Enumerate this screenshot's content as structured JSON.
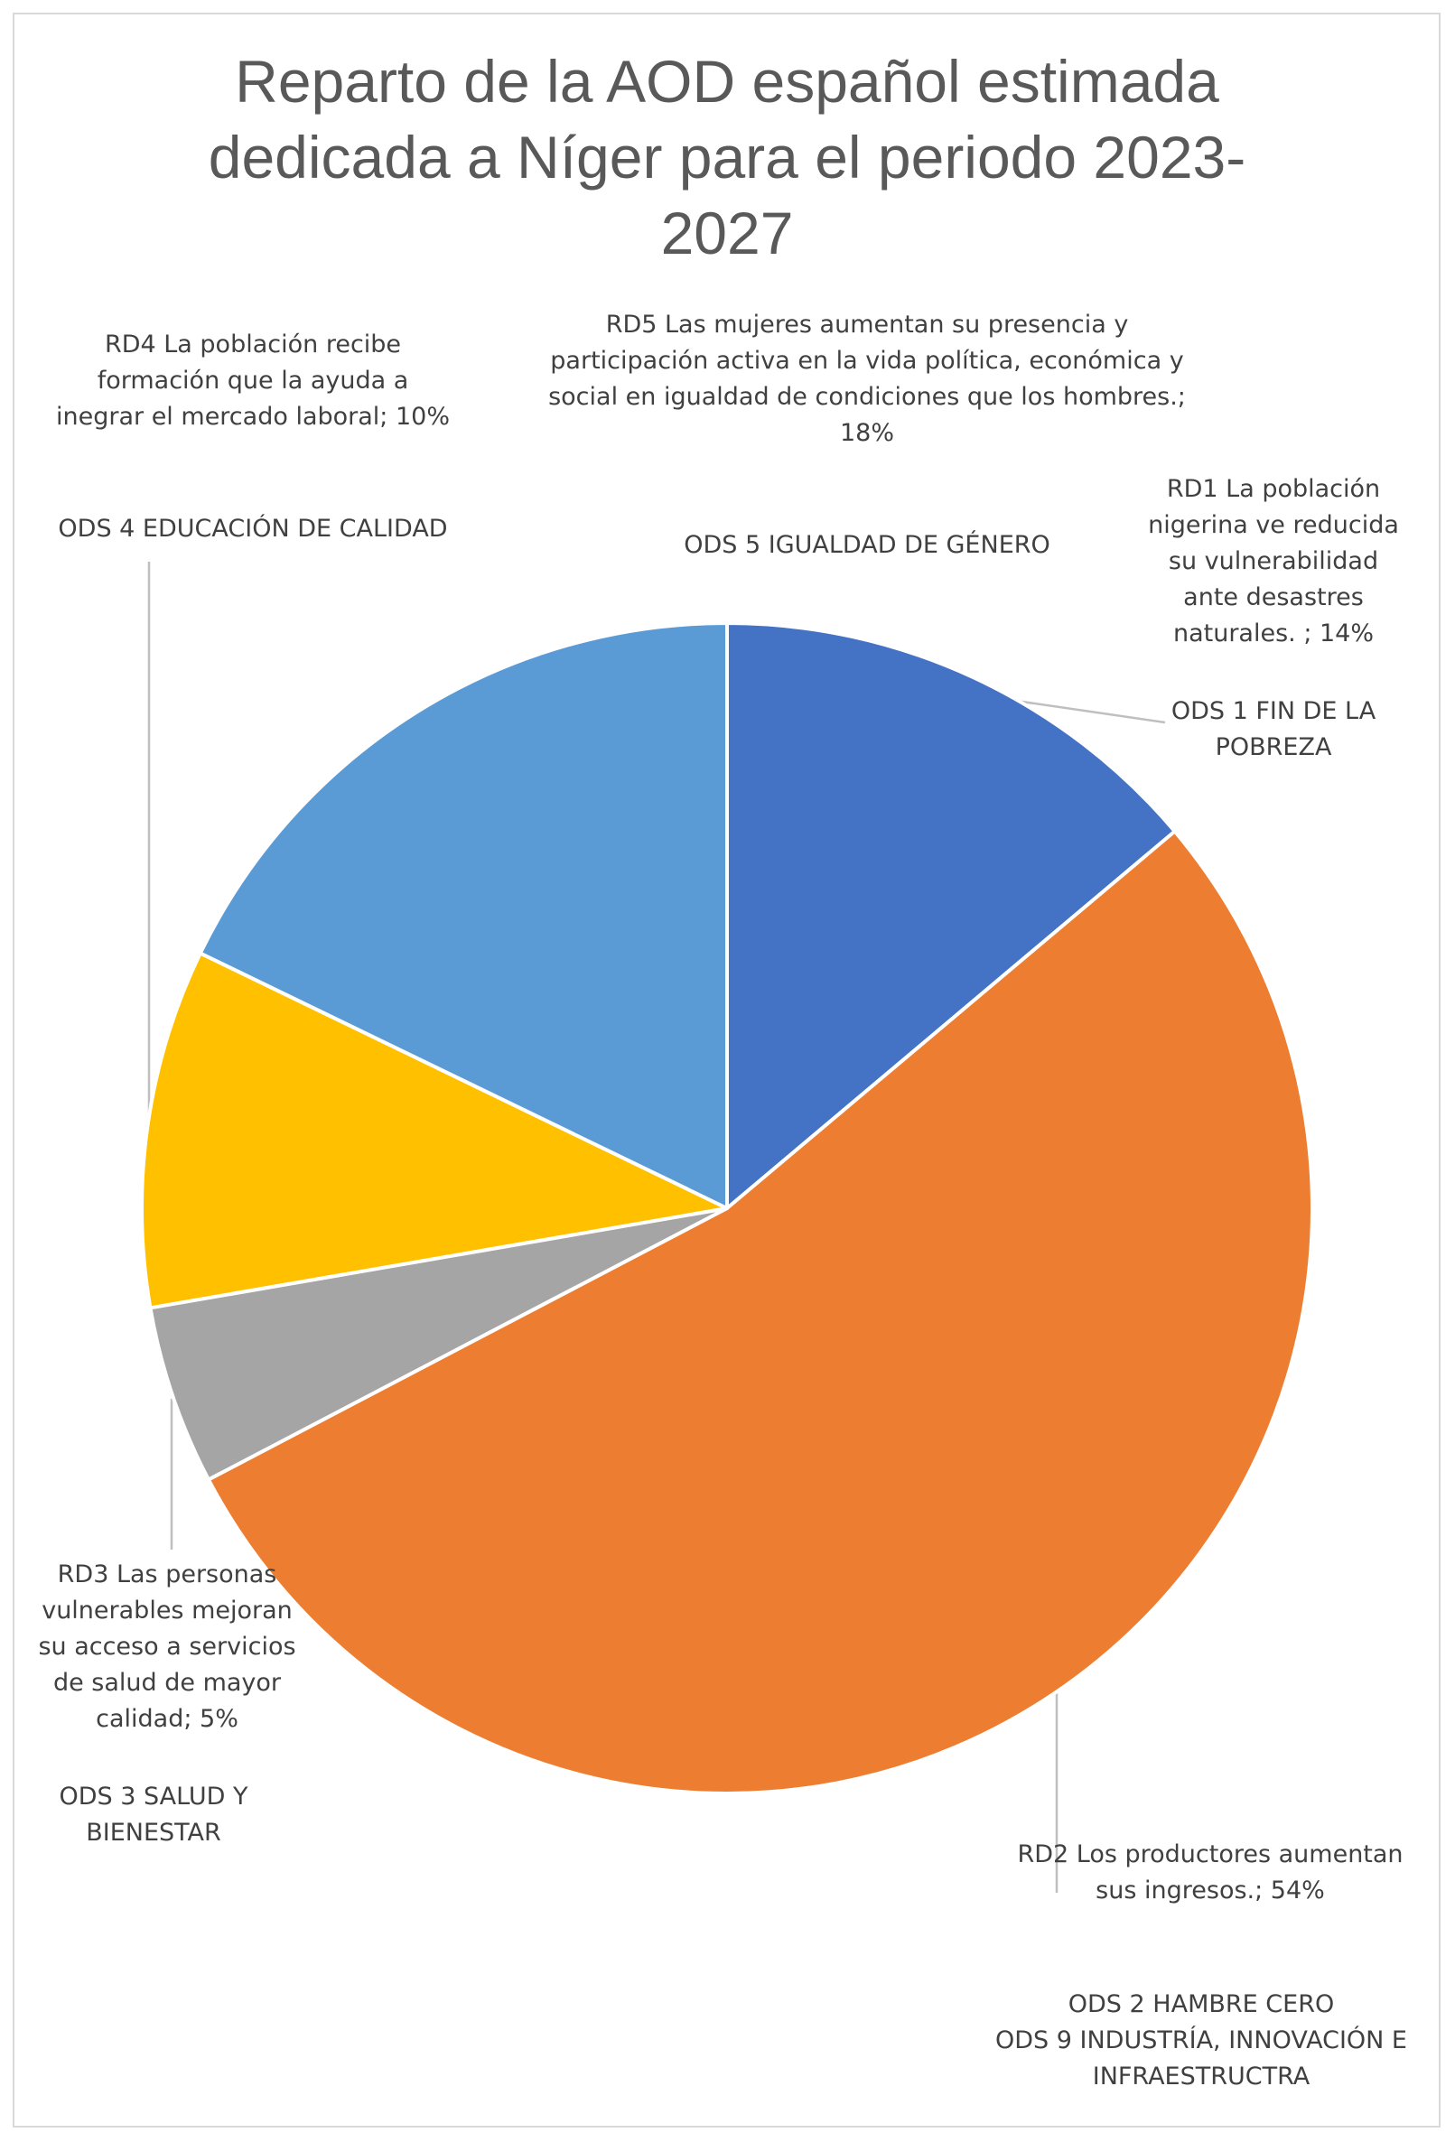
{
  "chart_data": {
    "type": "pie",
    "title": "Reparto de la AOD español estimada dedicada a Níger para el periodo 2023-2027",
    "title_lines": [
      "Reparto de la AOD español estimada",
      "dedicada a Níger para el periodo 2023-",
      "2027"
    ],
    "start_angle_deg": 0,
    "direction": "clockwise",
    "slices": [
      {
        "id": "rd1",
        "category": "RD1 La población nigerina ve reducida su vulnerabilidad ante desastres naturales.",
        "value": 14,
        "color": "#4472c4",
        "label_lines": [
          "RD1 La población",
          "nigerina ve reducida",
          "su vulnerabilidad",
          "ante desastres",
          "naturales. ; 14%"
        ],
        "ods_lines": [
          "ODS 1 FIN DE LA",
          "POBREZA"
        ]
      },
      {
        "id": "rd2",
        "category": "RD2 Los productores aumentan sus ingresos.",
        "value": 54,
        "color": "#ed7d31",
        "label_lines": [
          "RD2 Los productores aumentan",
          "sus ingresos.; 54%"
        ],
        "ods_lines": [
          "ODS 2 HAMBRE CERO",
          "ODS 9 INDUSTRÍA, INNOVACIÓN E",
          "INFRAESTRUCTRA"
        ]
      },
      {
        "id": "rd3",
        "category": "RD3 Las personas vulnerables mejoran su acceso a servicios de salud de mayor calidad",
        "value": 5,
        "color": "#a5a5a5",
        "label_lines": [
          "RD3 Las personas",
          "vulnerables mejoran",
          "su acceso a servicios",
          "de salud de mayor",
          "calidad; 5%"
        ],
        "ods_lines": [
          "ODS 3 SALUD Y",
          "BIENESTAR"
        ]
      },
      {
        "id": "rd4",
        "category": "RD4 La población recibe formación que la ayuda a inegrar el mercado laboral",
        "value": 10,
        "color": "#ffc000",
        "label_lines": [
          "RD4 La población recibe",
          "formación que la ayuda a",
          "inegrar el mercado laboral; 10%"
        ],
        "ods_lines": [
          "ODS 4 EDUCACIÓN DE CALIDAD"
        ]
      },
      {
        "id": "rd5",
        "category": "RD5 Las mujeres aumentan su presencia y participación activa en la vida política, económica y social en igualdad de condiciones que los hombres.",
        "value": 18,
        "color": "#5b9bd5",
        "label_lines": [
          "RD5 Las mujeres aumentan su presencia y",
          "participación activa en la vida política, económica y",
          "social en igualdad de condiciones que los hombres.;",
          "18%"
        ],
        "ods_lines": [
          "ODS 5 IGUALDAD DE GÉNERO"
        ]
      }
    ]
  }
}
